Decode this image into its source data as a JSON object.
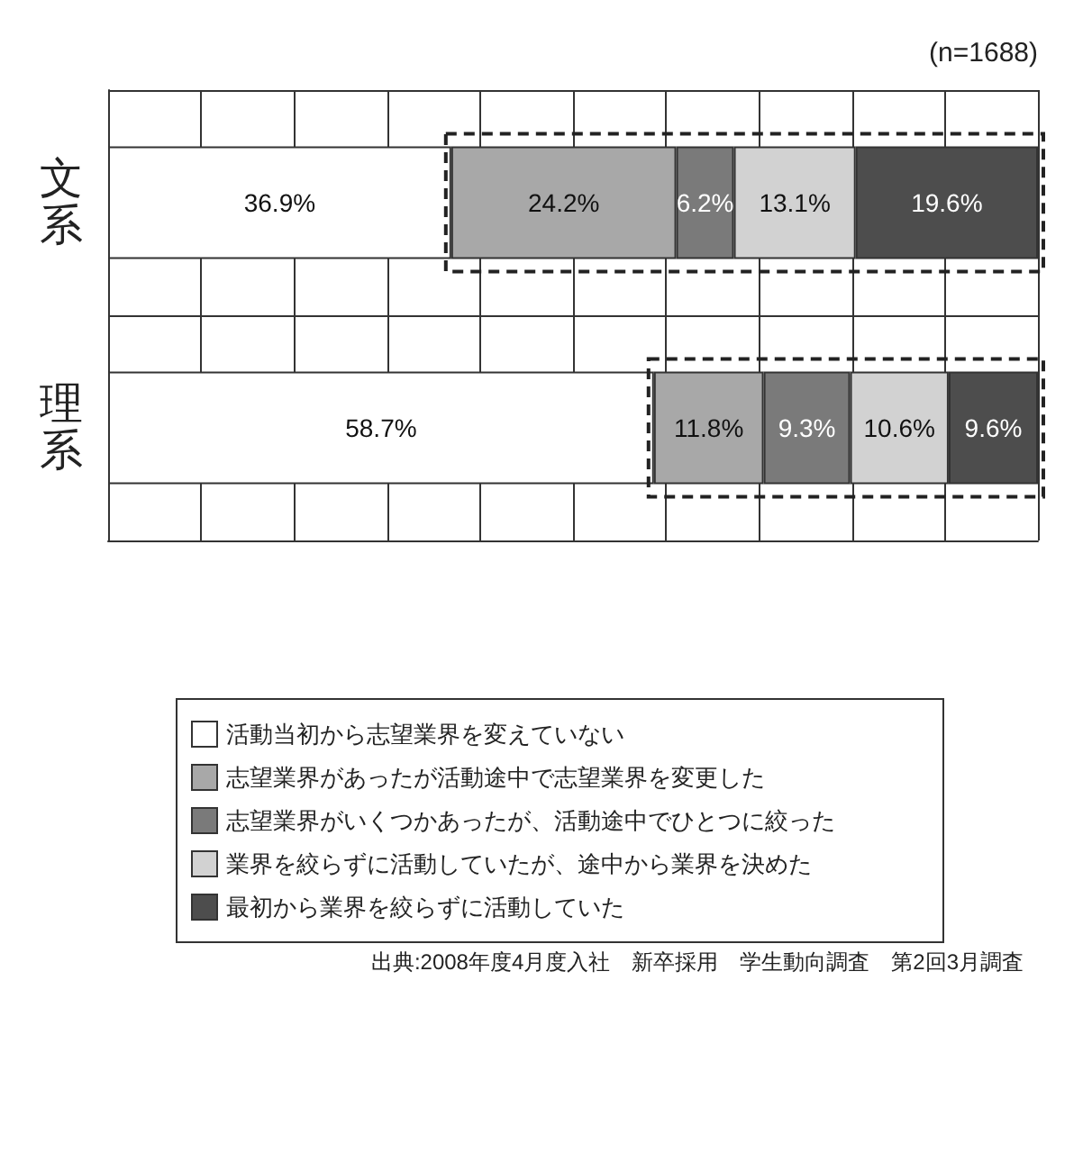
{
  "chart_data": {
    "type": "bar",
    "orientation": "horizontal",
    "stacked": true,
    "categories": [
      "文系",
      "理系"
    ],
    "series": [
      {
        "name": "活動当初から志望業界を変えていない",
        "color": "#ffffff",
        "values": [
          36.9,
          58.7
        ],
        "value_labels": [
          "36.9%",
          "58.7%"
        ]
      },
      {
        "name": "志望業界があったが活動途中で志望業界を変更した",
        "color": "#a8a8a8",
        "values": [
          24.2,
          11.8
        ],
        "value_labels": [
          "24.2%",
          "11.8%"
        ]
      },
      {
        "name": "志望業界がいくつかあったが、活動途中でひとつに絞った",
        "color": "#7a7a7a",
        "values": [
          6.2,
          9.3
        ],
        "value_labels": [
          "6.2%",
          "9.3%"
        ]
      },
      {
        "name": "業界を絞らずに活動していたが、途中から業界を決めた",
        "color": "#d2d2d2",
        "values": [
          13.1,
          10.6
        ],
        "value_labels": [
          "13.1%",
          "10.6%"
        ]
      },
      {
        "name": "最初から業界を絞らずに活動していた",
        "color": "#4d4d4d",
        "values": [
          19.6,
          9.6
        ],
        "value_labels": [
          "19.6%",
          "9.6%"
        ]
      }
    ],
    "xlim": [
      0,
      100
    ],
    "xticks": [
      {
        "value": 0,
        "label": null
      },
      {
        "value": 10,
        "label": null
      },
      {
        "value": 20,
        "label": null
      },
      {
        "value": 30,
        "label": null
      },
      {
        "value": 40,
        "label": null
      },
      {
        "value": 50,
        "label": null
      },
      {
        "value": 60,
        "label": null
      },
      {
        "value": 70,
        "label": null
      },
      {
        "value": 80,
        "label": null
      },
      {
        "value": 90,
        "label": null
      },
      {
        "value": 100,
        "label": null
      }
    ],
    "tick_labels": "y",
    "grid": true,
    "legend": "bottom",
    "annotations": [
      "(n=1688)",
      "出典:2008年度4月度入社　新卒採用　学生動向調査　第2回3月調査"
    ]
  }
}
